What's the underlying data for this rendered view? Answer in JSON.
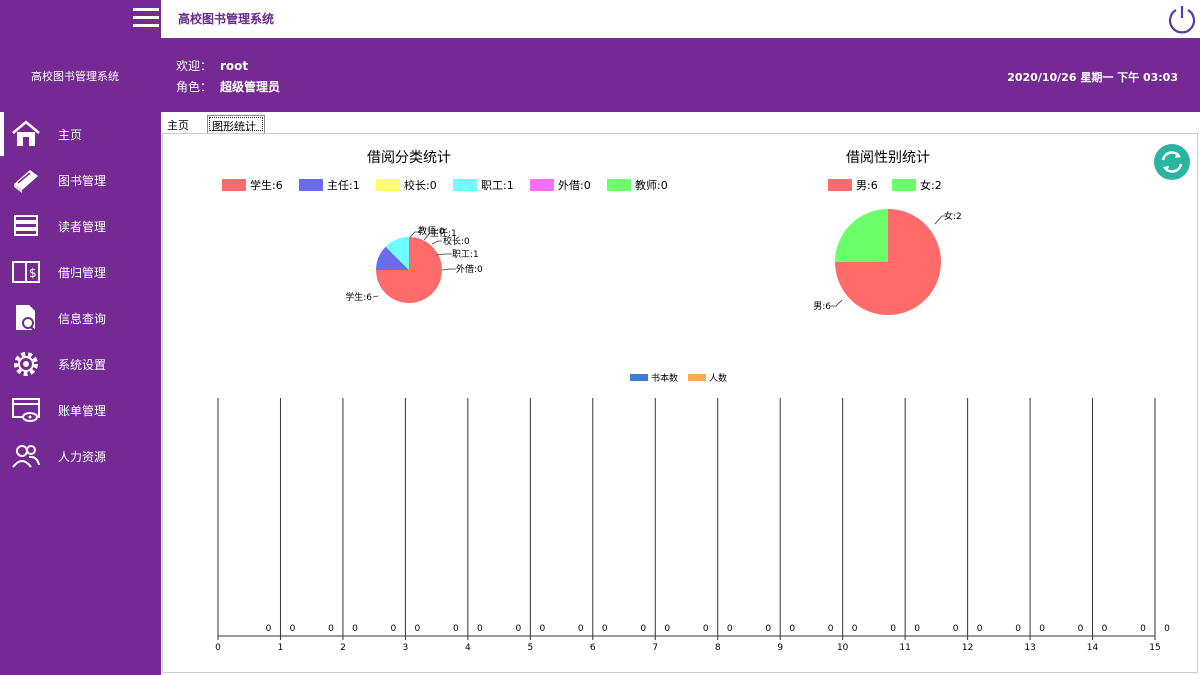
{
  "app": {
    "title_top": "高校图书管理系统",
    "sidebar_title": "高校图书管理系统"
  },
  "header": {
    "welcome_label": "欢迎：",
    "welcome_user": "root",
    "role_label": "角色：",
    "role_value": "超级管理员",
    "datetime": "2020/10/26 星期一 下午 03:03"
  },
  "sidebar": {
    "items": [
      {
        "label": "主页",
        "icon": "home-icon"
      },
      {
        "label": "图书管理",
        "icon": "book-icon"
      },
      {
        "label": "读者管理",
        "icon": "reader-icon"
      },
      {
        "label": "借归管理",
        "icon": "borrow-icon"
      },
      {
        "label": "信息查询",
        "icon": "search-doc-icon"
      },
      {
        "label": "系统设置",
        "icon": "gear-icon"
      },
      {
        "label": "账单管理",
        "icon": "bill-icon"
      },
      {
        "label": "人力资源",
        "icon": "people-icon"
      }
    ]
  },
  "tabs": [
    {
      "label": "主页"
    },
    {
      "label": "图形统计",
      "active": true
    }
  ],
  "colors": {
    "purple": "#742a92",
    "red": "#ff6b6b",
    "blue": "#6b6bf0",
    "yellow": "#ffff6b",
    "cyan": "#6bffff",
    "magenta": "#ff6bff",
    "green": "#6bff6b",
    "teal": "#2bb5a0",
    "bar_blue": "#3a7fd5",
    "bar_orange": "#f0b050"
  },
  "chart_data": [
    {
      "type": "pie",
      "title": "借阅分类统计",
      "categories": [
        "学生",
        "主任",
        "校长",
        "职工",
        "外借",
        "教师"
      ],
      "legend": [
        "学生:6",
        "主任:1",
        "校长:0",
        "职工:1",
        "外借:0",
        "教师:0"
      ],
      "labels": [
        "学生:6",
        "主任:1",
        "校长:0",
        "职工:1",
        "外借:0",
        "教师:0"
      ],
      "values": [
        6,
        1,
        0,
        1,
        0,
        0
      ],
      "colors": [
        "#ff6b6b",
        "#6b6bf0",
        "#ffff6b",
        "#6bffff",
        "#ff6bff",
        "#6bff6b"
      ],
      "legend_position": "top"
    },
    {
      "type": "pie",
      "title": "借阅性别统计",
      "categories": [
        "男",
        "女"
      ],
      "legend": [
        "男:6",
        "女:2"
      ],
      "labels": [
        "男:6",
        "女:2"
      ],
      "values": [
        6,
        2
      ],
      "colors": [
        "#ff6b6b",
        "#6bff6b"
      ],
      "legend_position": "top"
    },
    {
      "type": "bar",
      "series": [
        {
          "name": "书本数",
          "color": "#3a7fd5",
          "values": [
            0,
            0,
            0,
            0,
            0,
            0,
            0,
            0,
            0,
            0,
            0,
            0,
            0,
            0,
            0
          ]
        },
        {
          "name": "人数",
          "color": "#f0b050",
          "values": [
            0,
            0,
            0,
            0,
            0,
            0,
            0,
            0,
            0,
            0,
            0,
            0,
            0,
            0,
            0
          ]
        }
      ],
      "xlim": [
        0,
        15
      ],
      "x_ticks": [
        "0",
        "1",
        "2",
        "3",
        "4",
        "5",
        "6",
        "7",
        "8",
        "9",
        "10",
        "11",
        "12",
        "13",
        "14",
        "15"
      ],
      "data_labels": [
        "0",
        "0",
        "0",
        "0",
        "0",
        "0",
        "0",
        "0",
        "0",
        "0",
        "0",
        "0",
        "0",
        "0",
        "0",
        "0",
        "0",
        "0",
        "0",
        "0",
        "0",
        "0",
        "0",
        "0",
        "0",
        "0",
        "0",
        "0",
        "0",
        "0"
      ],
      "legend_position": "top"
    }
  ]
}
